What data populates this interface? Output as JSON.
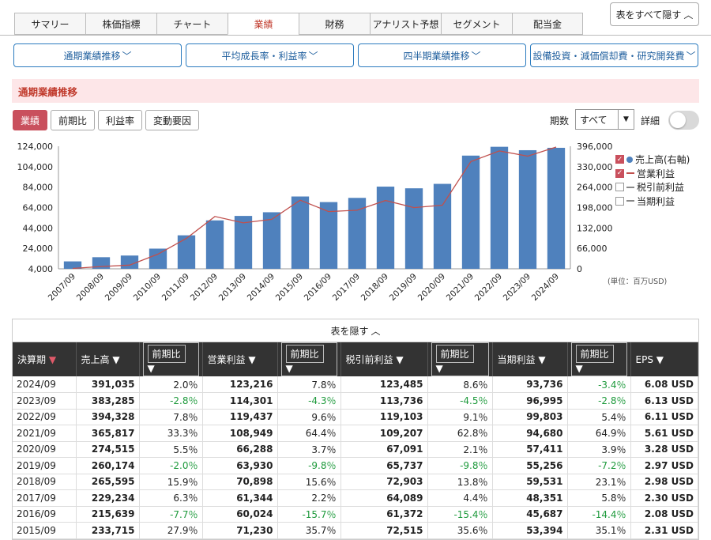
{
  "tabs": [
    {
      "label": "サマリー",
      "active": false
    },
    {
      "label": "株価指標",
      "active": false
    },
    {
      "label": "チャート",
      "active": false
    },
    {
      "label": "業績",
      "active": true
    },
    {
      "label": "財務",
      "active": false
    },
    {
      "label": "アナリスト予想",
      "active": false
    },
    {
      "label": "セグメント",
      "active": false
    },
    {
      "label": "配当金",
      "active": false
    }
  ],
  "hide_all_label": "表をすべて隠す",
  "sections": [
    "通期業績推移",
    "平均成長率・利益率",
    "四半期業績推移",
    "設備投資・減価償却費・研究開発費"
  ],
  "section_title": "通期業績推移",
  "mode_buttons": [
    {
      "label": "業績",
      "active": true
    },
    {
      "label": "前期比",
      "active": false
    },
    {
      "label": "利益率",
      "active": false
    },
    {
      "label": "変動要因",
      "active": false
    }
  ],
  "period_label": "期数",
  "period_value": "すべて",
  "detail_label": "詳細",
  "detail_on": false,
  "legend": [
    {
      "label": "売上高(右軸)",
      "checked": true,
      "marker": "dot",
      "color": "#4f81bd"
    },
    {
      "label": "営業利益",
      "checked": true,
      "marker": "line",
      "color": "#c0504d"
    },
    {
      "label": "税引前利益",
      "checked": false,
      "marker": "line",
      "color": "#888888"
    },
    {
      "label": "当期利益",
      "checked": false,
      "marker": "line",
      "color": "#888888"
    }
  ],
  "unit_note": "(単位：百万USD)",
  "chart_data": {
    "type": "bar",
    "categories": [
      "2007/09",
      "2008/09",
      "2009/09",
      "2010/09",
      "2011/09",
      "2012/09",
      "2013/09",
      "2014/09",
      "2015/09",
      "2016/09",
      "2017/09",
      "2018/09",
      "2019/09",
      "2020/09",
      "2021/09",
      "2022/09",
      "2023/09",
      "2024/09"
    ],
    "series": [
      {
        "name": "売上高(右軸)",
        "type": "bar",
        "axis": "right",
        "color": "#4f81bd",
        "values": [
          24006,
          37491,
          42905,
          65225,
          108249,
          156508,
          170910,
          182795,
          233715,
          215639,
          229234,
          265595,
          260174,
          274515,
          365817,
          394328,
          383285,
          391035
        ]
      },
      {
        "name": "営業利益",
        "type": "line",
        "axis": "left",
        "color": "#c0504d",
        "values": [
          4407,
          6275,
          7658,
          18385,
          33790,
          55241,
          48999,
          52503,
          71230,
          60024,
          61344,
          70898,
          63930,
          66288,
          108949,
          119437,
          114301,
          123216
        ]
      }
    ],
    "left_ticks": [
      "124,000",
      "104,000",
      "84,000",
      "64,000",
      "44,000",
      "24,000",
      "4,000"
    ],
    "right_ticks": [
      "396,000",
      "330,000",
      "264,000",
      "198,000",
      "132,000",
      "66,000",
      "0"
    ],
    "ylim_left": [
      4000,
      124000
    ],
    "ylim_right": [
      0,
      396000
    ],
    "grid": false
  },
  "table_toggle_label": "表を隠す",
  "table": {
    "headers": [
      "決算期",
      "売上高",
      "前期比",
      "営業利益",
      "前期比",
      "税引前利益",
      "前期比",
      "当期利益",
      "前期比",
      "EPS"
    ],
    "rows": [
      [
        "2024/09",
        "391,035",
        "2.0％",
        "123,216",
        "7.8％",
        "123,485",
        "8.6％",
        "93,736",
        "-3.4％",
        "6.08 USD"
      ],
      [
        "2023/09",
        "383,285",
        "-2.8％",
        "114,301",
        "-4.3％",
        "113,736",
        "-4.5％",
        "96,995",
        "-2.8％",
        "6.13 USD"
      ],
      [
        "2022/09",
        "394,328",
        "7.8％",
        "119,437",
        "9.6％",
        "119,103",
        "9.1％",
        "99,803",
        "5.4％",
        "6.11 USD"
      ],
      [
        "2021/09",
        "365,817",
        "33.3％",
        "108,949",
        "64.4％",
        "109,207",
        "62.8％",
        "94,680",
        "64.9％",
        "5.61 USD"
      ],
      [
        "2020/09",
        "274,515",
        "5.5％",
        "66,288",
        "3.7％",
        "67,091",
        "2.1％",
        "57,411",
        "3.9％",
        "3.28 USD"
      ],
      [
        "2019/09",
        "260,174",
        "-2.0％",
        "63,930",
        "-9.8％",
        "65,737",
        "-9.8％",
        "55,256",
        "-7.2％",
        "2.97 USD"
      ],
      [
        "2018/09",
        "265,595",
        "15.9％",
        "70,898",
        "15.6％",
        "72,903",
        "13.8％",
        "59,531",
        "23.1％",
        "2.98 USD"
      ],
      [
        "2017/09",
        "229,234",
        "6.3％",
        "61,344",
        "2.2％",
        "64,089",
        "4.4％",
        "48,351",
        "5.8％",
        "2.30 USD"
      ],
      [
        "2016/09",
        "215,639",
        "-7.7％",
        "60,024",
        "-15.7％",
        "61,372",
        "-15.4％",
        "45,687",
        "-14.4％",
        "2.08 USD"
      ],
      [
        "2015/09",
        "233,715",
        "27.9％",
        "71,230",
        "35.7％",
        "72,515",
        "35.6％",
        "53,394",
        "35.1％",
        "2.31 USD"
      ]
    ]
  }
}
